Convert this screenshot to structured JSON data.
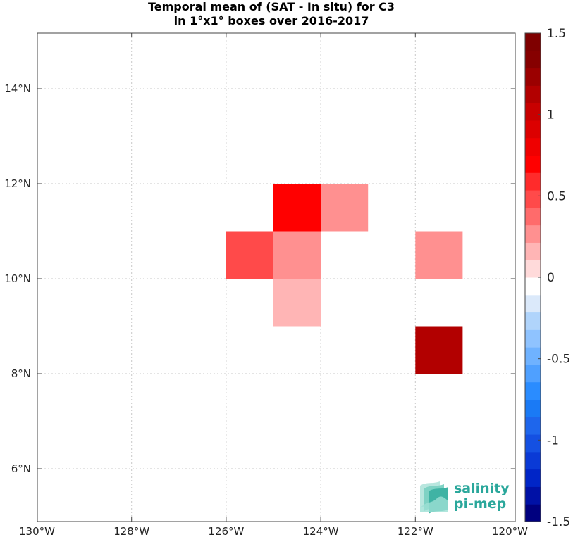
{
  "chart_data": {
    "type": "heatmap",
    "title_lines": [
      "Temporal mean of (SAT - In situ) for C3",
      "in 1°x1° boxes over 2016-2017"
    ],
    "x_range": [
      -130,
      -120
    ],
    "y_range": [
      5,
      15
    ],
    "x_ticks": [
      -130,
      -128,
      -126,
      -124,
      -122,
      -120
    ],
    "x_tick_labels": [
      "130°W",
      "128°W",
      "126°W",
      "124°W",
      "122°W",
      "120°W"
    ],
    "y_ticks": [
      6,
      8,
      10,
      12,
      14
    ],
    "y_tick_labels": [
      "6°N",
      "8°N",
      "10°N",
      "12°N",
      "14°N"
    ],
    "grid": true,
    "cells": [
      {
        "lon_w": -126,
        "lat_s": 11,
        "value": -0.1
      },
      {
        "lon_w": -125,
        "lat_s": 11,
        "value": 0.7
      },
      {
        "lon_w": -124,
        "lat_s": 11,
        "value": 0.3
      },
      {
        "lon_w": -126,
        "lat_s": 10,
        "value": 0.45
      },
      {
        "lon_w": -125,
        "lat_s": 10,
        "value": 0.3
      },
      {
        "lon_w": -122,
        "lat_s": 10,
        "value": 0.3
      },
      {
        "lon_w": -125,
        "lat_s": 9,
        "value": 0.15
      },
      {
        "lon_w": -122,
        "lat_s": 8,
        "value": 1.15
      }
    ],
    "colorbar": {
      "range": [
        -1.5,
        1.5
      ],
      "ticks": [
        1.5,
        1,
        0.5,
        0,
        -0.5,
        -1,
        -1.5
      ],
      "tick_labels": [
        "1.5",
        "1",
        "0.5",
        "0",
        "-0.5",
        "-1",
        "-1.5"
      ],
      "colors": [
        "#00007f",
        "#0011a6",
        "#0025c7",
        "#0a3ad6",
        "#1450e2",
        "#1e66ec",
        "#1a7af5",
        "#2a8cff",
        "#4fa0ff",
        "#6fb2ff",
        "#8fc3ff",
        "#b0d4fb",
        "#dbe9fa",
        "#ffffff",
        "#ffdada",
        "#ffb5b5",
        "#ff9090",
        "#ff6b6b",
        "#ff4a4a",
        "#ff2b2b",
        "#ff0000",
        "#ef0000",
        "#dc0000",
        "#c80000",
        "#b20000",
        "#9b0000",
        "#860000",
        "#7f0000"
      ]
    }
  },
  "logo": {
    "line1": "salinity",
    "line2": "pi-mep"
  }
}
